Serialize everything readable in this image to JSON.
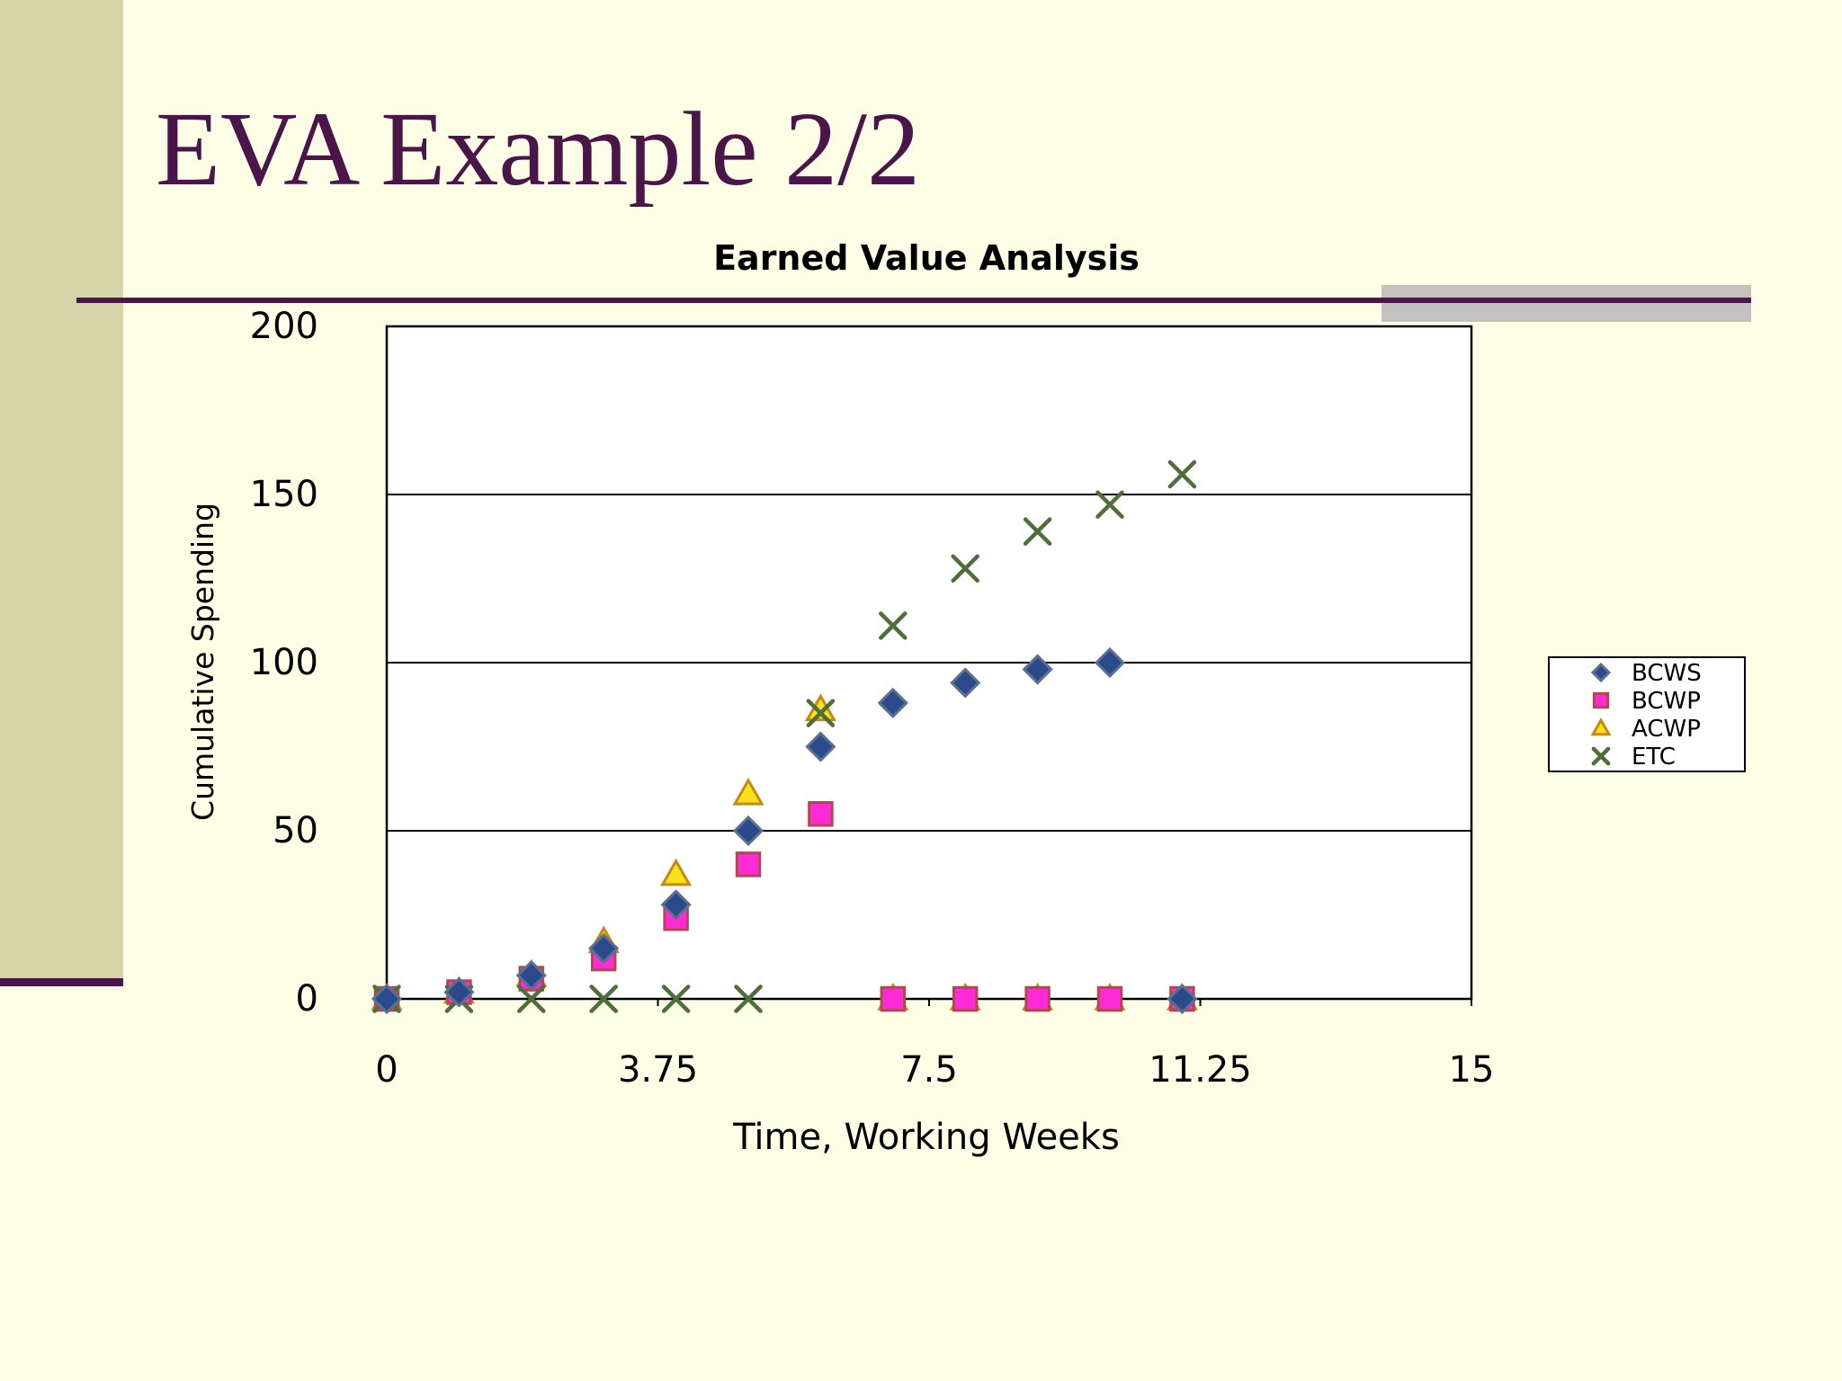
{
  "slide": {
    "title": "EVA Example 2/2",
    "colors": {
      "title": "#4a1548",
      "accent_bar": "#d3d4a8",
      "rule": "#4a1548",
      "background": "#fefde6"
    }
  },
  "chart_data": {
    "type": "scatter",
    "title": "Earned Value Analysis",
    "xlabel": "Time, Working Weeks",
    "ylabel": "Cumulative Spending",
    "xlim": [
      0,
      15
    ],
    "ylim": [
      0,
      200
    ],
    "xticks": [
      0,
      3.75,
      7.5,
      11.25,
      15
    ],
    "xtick_labels": [
      "0",
      "3.75",
      "7.5",
      "11.25",
      "15"
    ],
    "yticks": [
      0,
      50,
      100,
      150,
      200
    ],
    "ytick_labels": [
      "0",
      "50",
      "100",
      "150",
      "200"
    ],
    "grid": "horizontal",
    "legend_position": "right",
    "series": [
      {
        "name": "BCWS",
        "marker": "diamond",
        "color": "#2b4a8c",
        "points": [
          [
            0,
            0
          ],
          [
            1,
            2
          ],
          [
            2,
            7
          ],
          [
            3,
            15
          ],
          [
            4,
            28
          ],
          [
            5,
            50
          ],
          [
            6,
            75
          ],
          [
            7,
            88
          ],
          [
            8,
            94
          ],
          [
            9,
            98
          ],
          [
            10,
            100
          ],
          [
            11,
            0
          ]
        ]
      },
      {
        "name": "BCWP",
        "marker": "square",
        "color": "#ff2bd6",
        "points": [
          [
            0,
            0
          ],
          [
            1,
            2
          ],
          [
            2,
            6
          ],
          [
            3,
            12
          ],
          [
            4,
            24
          ],
          [
            5,
            40
          ],
          [
            6,
            55
          ],
          [
            7,
            0
          ],
          [
            8,
            0
          ],
          [
            9,
            0
          ],
          [
            10,
            0
          ],
          [
            11,
            0
          ]
        ]
      },
      {
        "name": "ACWP",
        "marker": "triangle",
        "color": "#f7e21a",
        "points": [
          [
            0,
            0
          ],
          [
            1,
            2
          ],
          [
            2,
            7
          ],
          [
            3,
            17
          ],
          [
            4,
            37
          ],
          [
            5,
            61
          ],
          [
            6,
            86
          ],
          [
            7,
            0
          ],
          [
            8,
            0
          ],
          [
            9,
            0
          ],
          [
            10,
            0
          ],
          [
            11,
            0
          ]
        ]
      },
      {
        "name": "ETC",
        "marker": "x",
        "color": "#4e6e3a",
        "points": [
          [
            0,
            0
          ],
          [
            1,
            0
          ],
          [
            2,
            0
          ],
          [
            3,
            0
          ],
          [
            4,
            0
          ],
          [
            5,
            0
          ],
          [
            6,
            85
          ],
          [
            7,
            111
          ],
          [
            8,
            128
          ],
          [
            9,
            139
          ],
          [
            10,
            147
          ],
          [
            11,
            156
          ]
        ]
      }
    ]
  }
}
